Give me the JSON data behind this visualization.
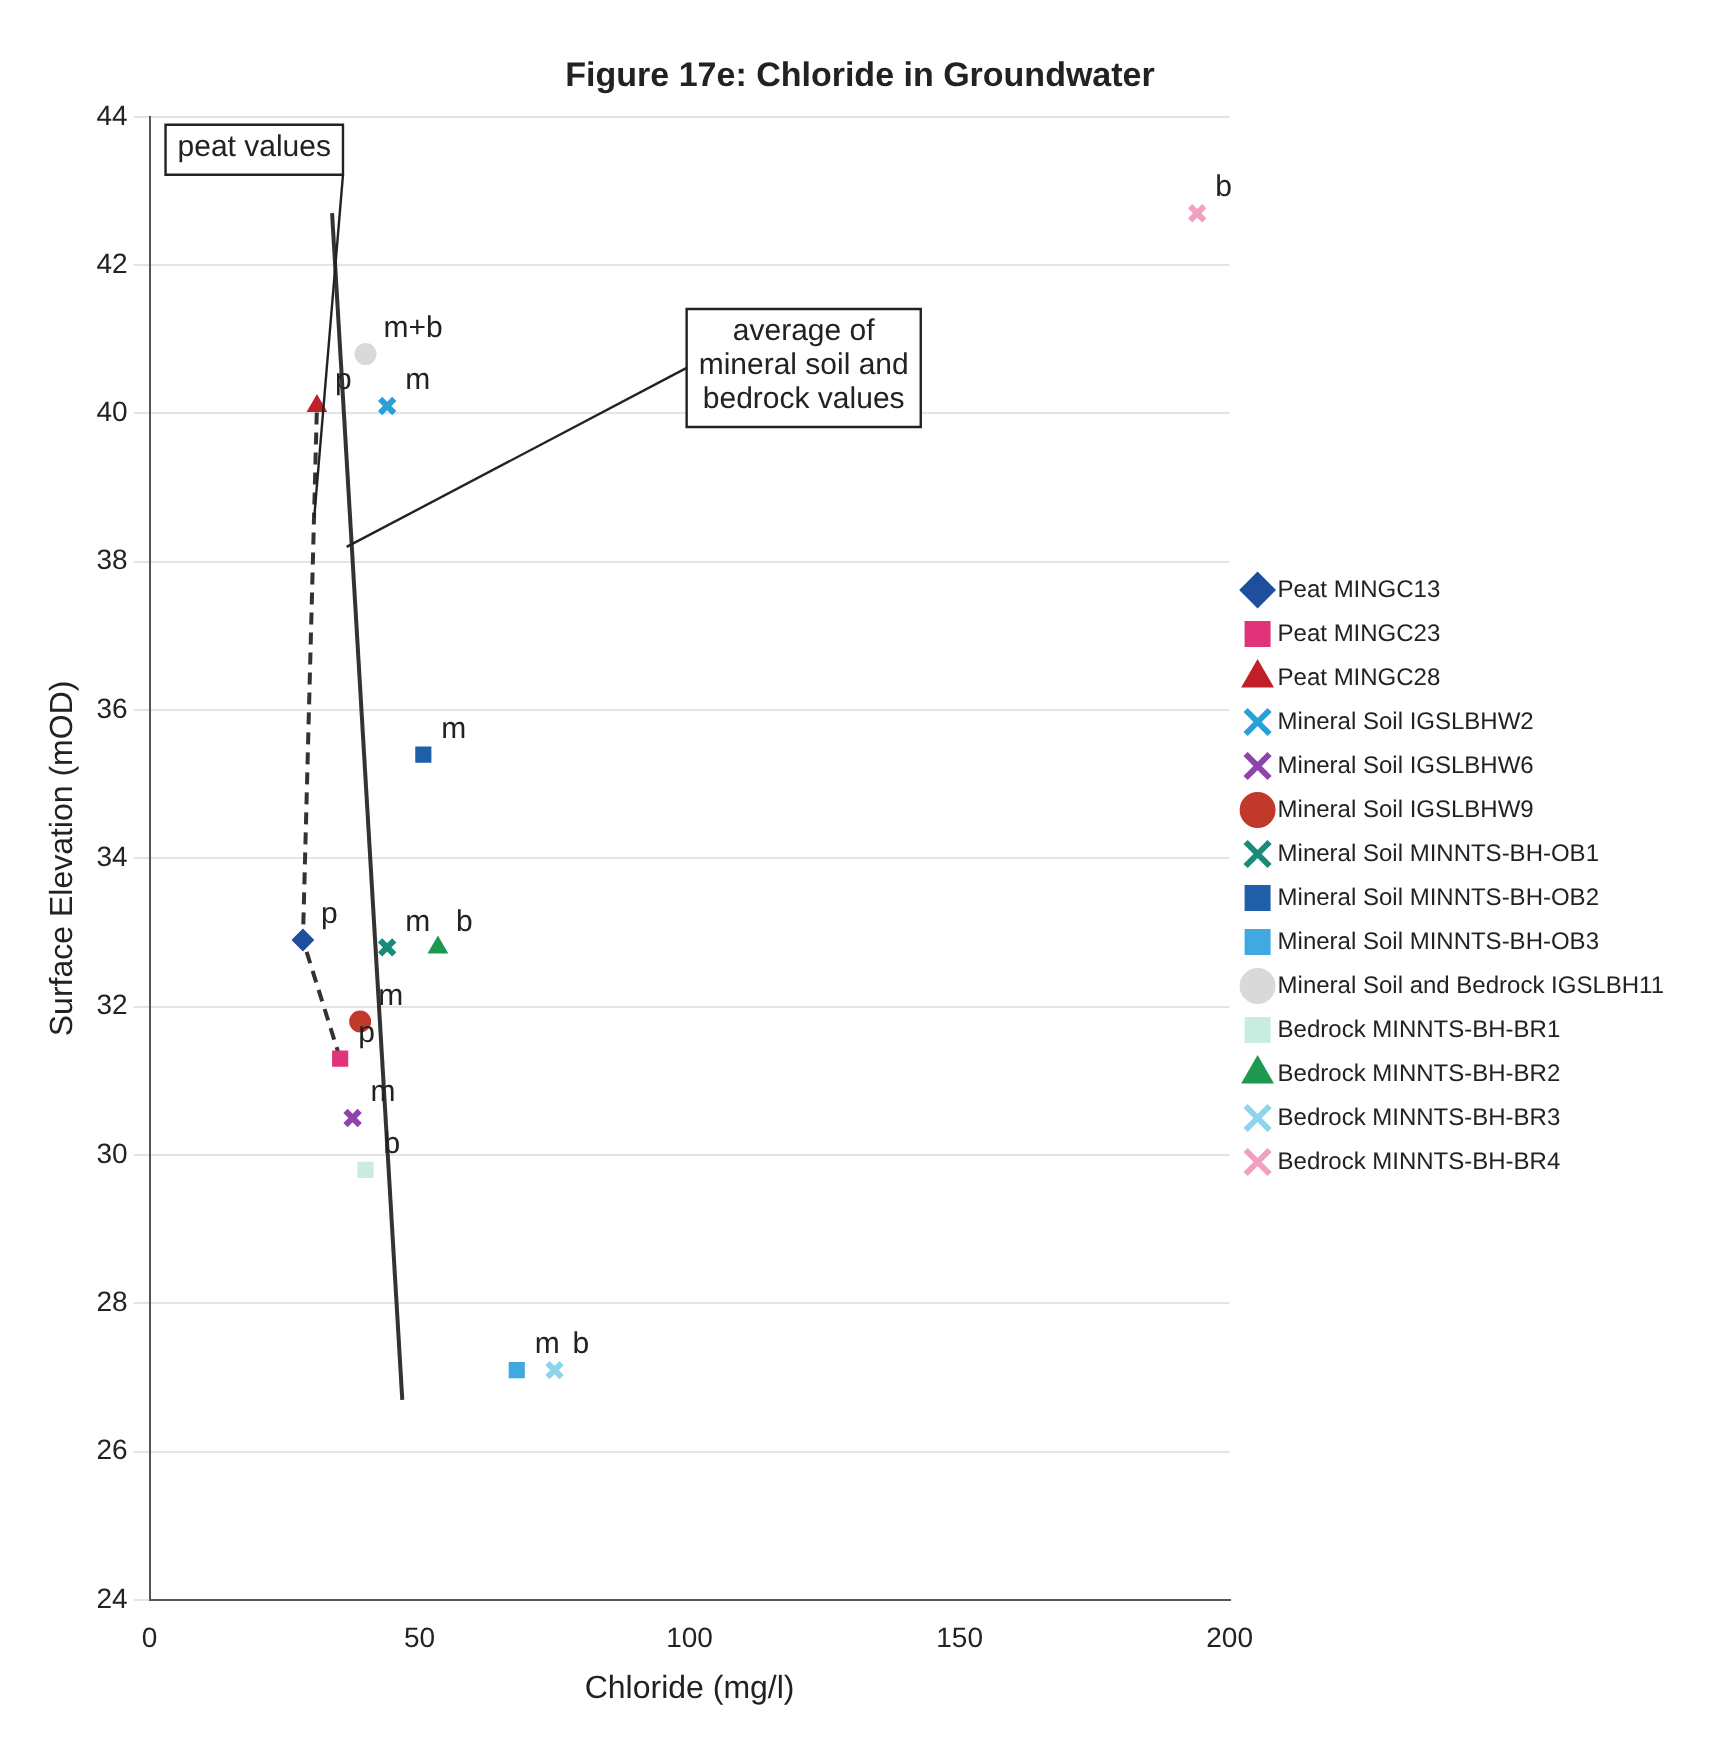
{
  "chart_data": {
    "type": "scatter",
    "title": "Figure 17e: Chloride in Groundwater",
    "xlabel": "Chloride (mg/l)",
    "ylabel": "Surface Elevation (mOD)",
    "xlim": [
      0,
      200
    ],
    "xticks": [
      0,
      50,
      100,
      150,
      200
    ],
    "ylim": [
      24,
      44
    ],
    "yticks": [
      24,
      26,
      28,
      30,
      32,
      34,
      36,
      38,
      40,
      42,
      44
    ],
    "grid": "y",
    "legend": "right",
    "series": [
      {
        "name": "Peat MINGC13",
        "color": "#1f4e9c",
        "marker": "diamond",
        "x": [
          28.4
        ],
        "values": [
          32.9
        ]
      },
      {
        "name": "Peat MINGC23",
        "color": "#e0337a",
        "marker": "square",
        "x": [
          35.3
        ],
        "values": [
          31.3
        ]
      },
      {
        "name": "Peat MINGC28",
        "color": "#c0202a",
        "marker": "triangle",
        "x": [
          31
        ],
        "values": [
          40.1
        ]
      },
      {
        "name": "Mineral Soil IGSLBHW2",
        "color": "#2aa0d8",
        "marker": "cross",
        "x": [
          44
        ],
        "values": [
          40.1
        ]
      },
      {
        "name": "Mineral Soil IGSLBHW6",
        "color": "#8e44ad",
        "marker": "cross",
        "x": [
          37.6
        ],
        "values": [
          30.5
        ]
      },
      {
        "name": "Mineral Soil IGSLBHW9",
        "color": "#c0392b",
        "marker": "circle",
        "x": [
          39
        ],
        "values": [
          31.8
        ]
      },
      {
        "name": "Mineral Soil MINNTS-BH-OB1",
        "color": "#1a8a7a",
        "marker": "cross",
        "x": [
          44
        ],
        "values": [
          32.8
        ]
      },
      {
        "name": "Mineral Soil MINNTS-BH-OB2",
        "color": "#1f5fa8",
        "marker": "square",
        "x": [
          50.7
        ],
        "values": [
          35.4
        ]
      },
      {
        "name": "Mineral Soil MINNTS-BH-OB3",
        "color": "#3fa9e0",
        "marker": "square",
        "x": [
          68
        ],
        "values": [
          27.1
        ]
      },
      {
        "name": "Mineral Soil and Bedrock IGSLBH11",
        "color": "#d9d9d9",
        "marker": "circle",
        "x": [
          40
        ],
        "values": [
          40.8
        ]
      },
      {
        "name": "Bedrock MINNTS-BH-BR1",
        "color": "#c8ecdf",
        "marker": "square",
        "x": [
          40
        ],
        "values": [
          29.8
        ]
      },
      {
        "name": "Bedrock MINNTS-BH-BR2",
        "color": "#1e9a50",
        "marker": "triangle",
        "x": [
          53.4
        ],
        "values": [
          32.8
        ]
      },
      {
        "name": "Bedrock MINNTS-BH-BR3",
        "color": "#8fd3ee",
        "marker": "cross",
        "x": [
          75
        ],
        "values": [
          27.1
        ]
      },
      {
        "name": "Bedrock MINNTS-BH-BR4",
        "color": "#f0a0c0",
        "marker": "cross",
        "x": [
          194
        ],
        "values": [
          42.7
        ]
      },
      {
        "type": "line",
        "color": "#333333",
        "marker": "none",
        "line_style": "dashed",
        "x": [
          35.3,
          28.4,
          31
        ],
        "values": [
          31.3,
          32.9,
          40.1
        ]
      },
      {
        "type": "line",
        "color": "#333333",
        "marker": "none",
        "line_style": "solid",
        "x": [
          46.8,
          33.8
        ],
        "values": [
          26.7,
          42.7
        ]
      }
    ],
    "annotations": [
      {
        "text": "p",
        "x": 28.4,
        "y": 32.9
      },
      {
        "text": "p",
        "x": 35.3,
        "y": 31.3
      },
      {
        "text": "p",
        "x": 31,
        "y": 40.1
      },
      {
        "text": "m",
        "x": 44,
        "y": 40.1
      },
      {
        "text": "m",
        "x": 37.6,
        "y": 30.5
      },
      {
        "text": "m",
        "x": 39,
        "y": 31.8
      },
      {
        "text": "m",
        "x": 44,
        "y": 32.8
      },
      {
        "text": "m",
        "x": 50.7,
        "y": 35.4
      },
      {
        "text": "m",
        "x": 68,
        "y": 27.1
      },
      {
        "text": "m+b",
        "x": 40,
        "y": 40.8
      },
      {
        "text": "b",
        "x": 40,
        "y": 29.8
      },
      {
        "text": "b",
        "x": 53.4,
        "y": 32.8
      },
      {
        "text": "b",
        "x": 75,
        "y": 27.1
      },
      {
        "text": "b",
        "x": 194,
        "y": 42.7
      },
      {
        "text": "peat values",
        "x": 30.5,
        "y": 38.6
      },
      {
        "text": "average of mineral soil and bedrock values",
        "x": 36.5,
        "y": 38.2
      }
    ]
  }
}
